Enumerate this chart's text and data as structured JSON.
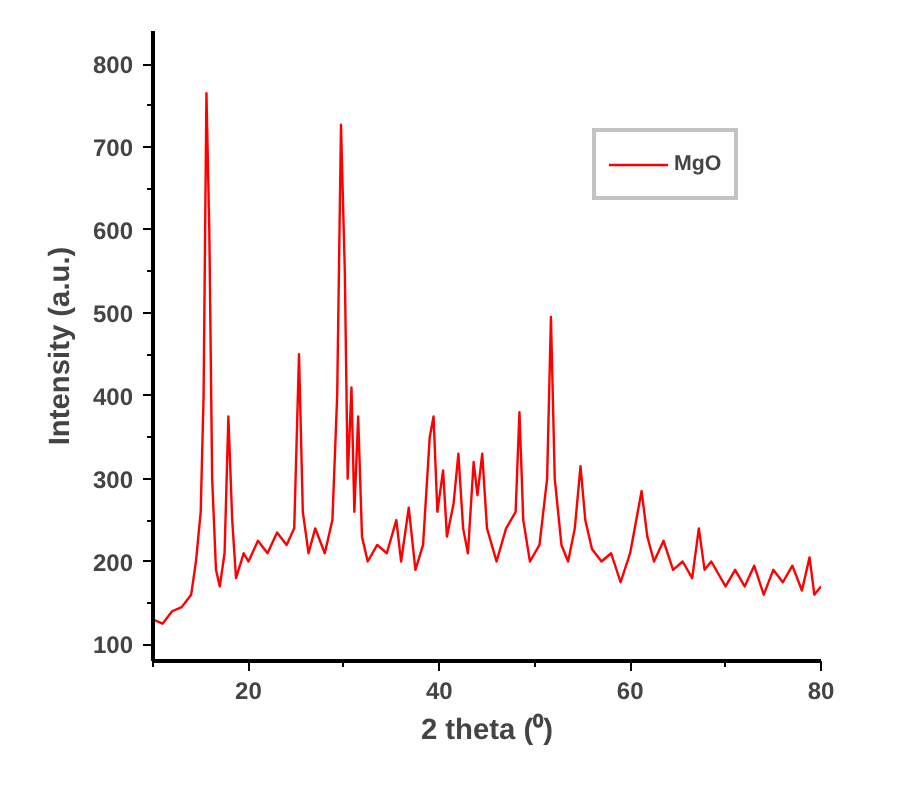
{
  "chart_data": {
    "type": "line",
    "xlabel": "2 theta (⁰)",
    "ylabel": "Intensity (a.u.)",
    "xlim": [
      10,
      80
    ],
    "ylim": [
      80,
      840
    ],
    "xticks": [
      20,
      40,
      60,
      80
    ],
    "yticks": [
      100,
      200,
      300,
      400,
      500,
      600,
      700,
      800
    ],
    "grid": false,
    "legend": "top right",
    "marker": "none",
    "line_style": "solid",
    "series": [
      {
        "name": "MgO",
        "color": "#ff0000",
        "x": [
          10,
          11,
          12,
          13,
          14,
          14.5,
          15,
          15.3,
          15.6,
          15.9,
          16.2,
          16.6,
          17,
          17.5,
          17.9,
          18.3,
          18.7,
          19.5,
          20,
          21,
          22,
          23,
          24,
          24.8,
          25.3,
          25.7,
          26.3,
          27,
          28,
          28.8,
          29.3,
          29.7,
          30.1,
          30.4,
          30.8,
          31.1,
          31.5,
          31.9,
          32.5,
          33.5,
          34.5,
          35.5,
          36,
          36.8,
          37.5,
          38.3,
          39,
          39.4,
          39.8,
          40.4,
          40.8,
          41.5,
          42,
          42.5,
          43,
          43.6,
          44,
          44.5,
          45,
          46,
          47,
          48,
          48.4,
          48.8,
          49.5,
          50.5,
          51.3,
          51.7,
          52.1,
          52.8,
          53.5,
          54.2,
          54.8,
          55.3,
          56,
          57,
          58,
          59,
          60,
          60.8,
          61.2,
          61.8,
          62.5,
          63.5,
          64.5,
          65.5,
          66.5,
          67.2,
          67.8,
          68.5,
          70,
          71,
          72,
          73,
          74,
          75,
          76,
          77,
          78,
          78.8,
          79.3,
          80
        ],
        "values": [
          130,
          125,
          140,
          145,
          160,
          200,
          260,
          400,
          765,
          600,
          300,
          190,
          170,
          210,
          375,
          250,
          180,
          210,
          200,
          225,
          210,
          235,
          220,
          240,
          450,
          260,
          210,
          240,
          210,
          250,
          400,
          727,
          550,
          300,
          410,
          260,
          375,
          230,
          200,
          220,
          210,
          250,
          200,
          265,
          190,
          220,
          350,
          375,
          260,
          310,
          230,
          270,
          330,
          240,
          210,
          320,
          280,
          330,
          240,
          200,
          240,
          260,
          380,
          250,
          200,
          220,
          300,
          495,
          300,
          220,
          200,
          240,
          315,
          250,
          215,
          200,
          210,
          175,
          210,
          260,
          285,
          230,
          200,
          225,
          190,
          200,
          180,
          240,
          190,
          200,
          170,
          190,
          170,
          195,
          160,
          190,
          175,
          195,
          165,
          205,
          160,
          170
        ]
      }
    ]
  }
}
